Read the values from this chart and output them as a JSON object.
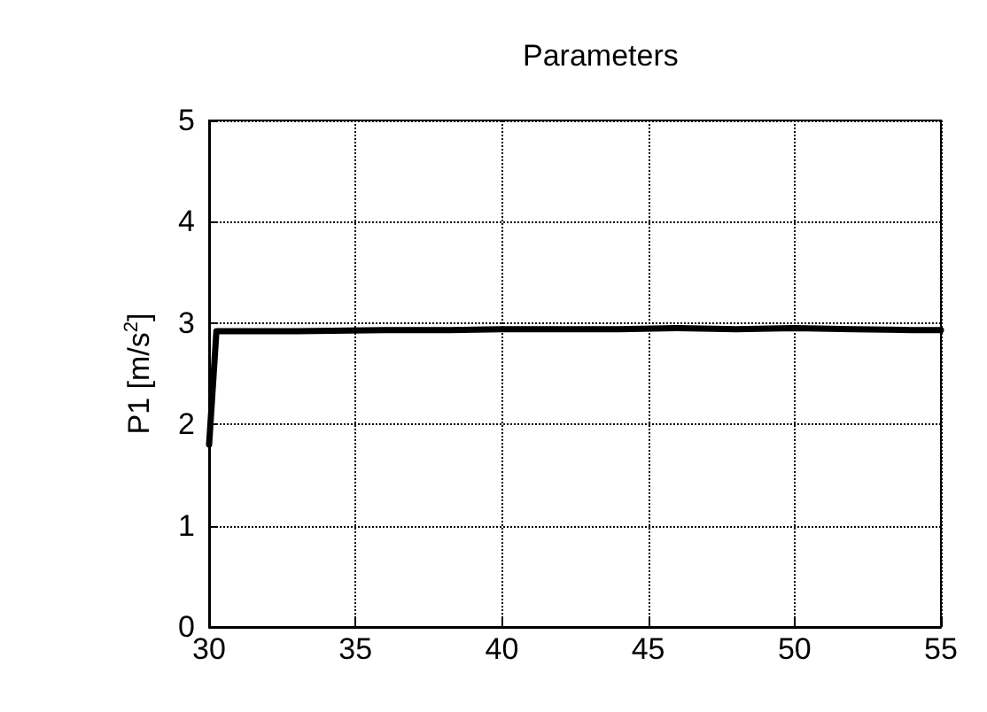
{
  "chart_data": {
    "type": "line",
    "title": "Parameters",
    "ylabel": "P1 [m/s$^{2}$]",
    "series": [
      {
        "color": "#000000",
        "x": [
          30,
          30.25,
          33,
          36,
          38,
          40,
          42,
          44,
          46,
          48,
          50,
          52,
          54,
          55
        ],
        "values": [
          1.8,
          2.92,
          2.92,
          2.93,
          2.93,
          2.94,
          2.94,
          2.94,
          2.95,
          2.94,
          2.95,
          2.94,
          2.93,
          2.93
        ]
      }
    ],
    "xlim": [
      30,
      55
    ],
    "xticks": [
      30,
      35,
      40,
      45,
      50,
      55
    ],
    "ylim": [
      0,
      5
    ],
    "yticks": [
      0,
      1,
      2,
      3,
      4,
      5
    ],
    "grid": true,
    "marker": "none"
  }
}
